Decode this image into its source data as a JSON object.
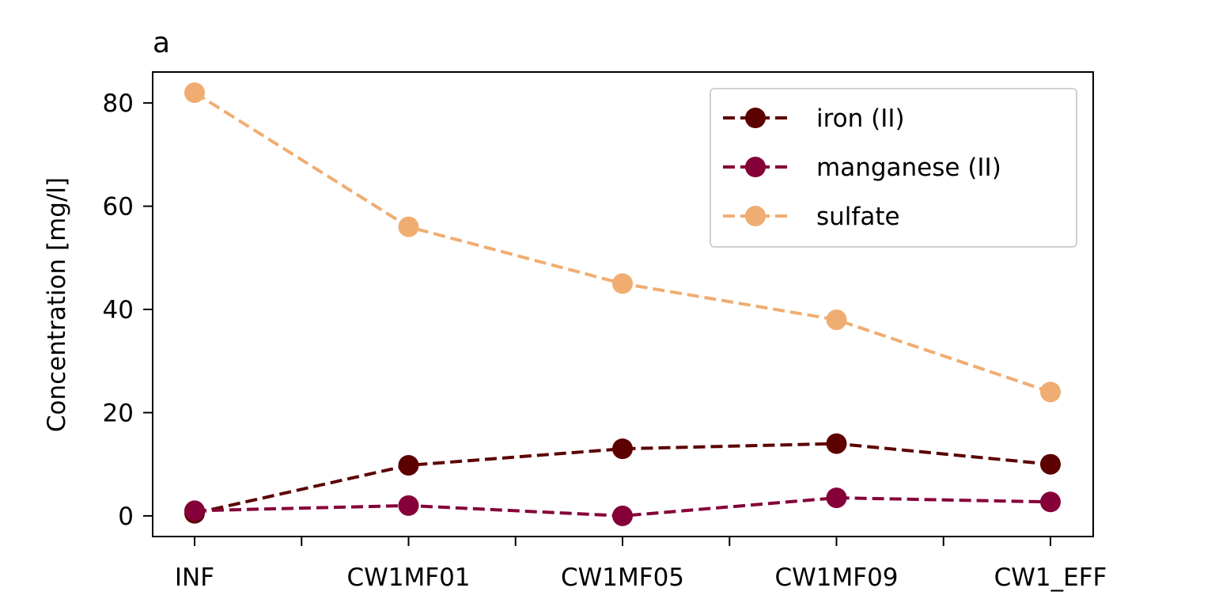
{
  "chart_data": {
    "type": "line",
    "title": "a",
    "xlabel": "",
    "ylabel": "Concentration [mg/l]",
    "categories": [
      "INF",
      "CW1MF01",
      "CW1MF05",
      "CW1MF09",
      "CW1_EFF"
    ],
    "ylim": [
      -4,
      86
    ],
    "yticks": [
      0,
      20,
      40,
      60,
      80
    ],
    "grid": false,
    "legend_position": "top-right",
    "series": [
      {
        "name": "iron (II)",
        "color": "#5c0000",
        "values": [
          0.5,
          9.8,
          13.0,
          14.0,
          10.0
        ]
      },
      {
        "name": "manganese (II)",
        "color": "#850039",
        "values": [
          1.0,
          2.0,
          0.0,
          3.5,
          2.7
        ]
      },
      {
        "name": "sulfate",
        "color": "#f0ad72",
        "values": [
          82.0,
          56.0,
          45.0,
          38.0,
          24.0
        ]
      }
    ]
  }
}
